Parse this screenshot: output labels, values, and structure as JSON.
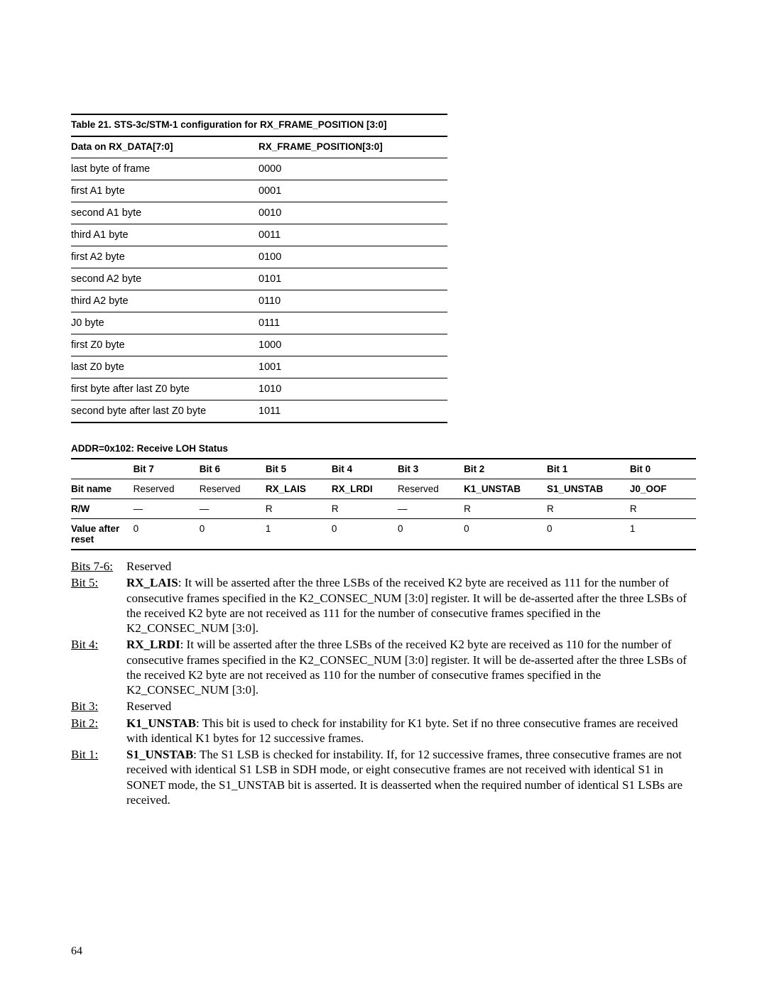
{
  "table21": {
    "caption": "Table 21. STS-3c/STM-1 configuration for RX_FRAME_POSITION [3:0]",
    "head_col1": "Data on RX_DATA[7:0]",
    "head_col2": "RX_FRAME_POSITION[3:0]",
    "rows": [
      {
        "c1": "last byte of frame",
        "c2": "0000"
      },
      {
        "c1": "first A1 byte",
        "c2": "0001"
      },
      {
        "c1": "second A1 byte",
        "c2": "0010"
      },
      {
        "c1": "third A1 byte",
        "c2": "0011"
      },
      {
        "c1": "first A2 byte",
        "c2": "0100"
      },
      {
        "c1": "second A2 byte",
        "c2": "0101"
      },
      {
        "c1": "third A2 byte",
        "c2": "0110"
      },
      {
        "c1": "J0 byte",
        "c2": "0111"
      },
      {
        "c1": "first Z0 byte",
        "c2": "1000"
      },
      {
        "c1": "last Z0 byte",
        "c2": "1001"
      },
      {
        "c1": "first byte after last Z0 byte",
        "c2": "1010"
      },
      {
        "c1": "second byte after last Z0 byte",
        "c2": "1011"
      }
    ]
  },
  "section_heading": "ADDR=0x102: Receive LOH Status",
  "reg": {
    "bit_headers": [
      "Bit 7",
      "Bit 6",
      "Bit 5",
      "Bit 4",
      "Bit 3",
      "Bit 2",
      "Bit 1",
      "Bit 0"
    ],
    "row_bitname_label": "Bit name",
    "row_rw_label": "R/W",
    "row_val_label": "Value after reset",
    "bitname": [
      "Reserved",
      "Reserved",
      "RX_LAIS",
      "RX_LRDI",
      "Reserved",
      "K1_UNSTAB",
      "S1_UNSTAB",
      "J0_OOF"
    ],
    "bitname_bold": [
      false,
      false,
      true,
      true,
      false,
      true,
      true,
      true
    ],
    "rw": [
      "—",
      "—",
      "R",
      "R",
      "—",
      "R",
      "R",
      "R"
    ],
    "val": [
      "0",
      "0",
      "1",
      "0",
      "0",
      "0",
      "0",
      "1"
    ]
  },
  "bits": {
    "b76_label": "Bits 7-6:",
    "b76_text": "Reserved",
    "b5_label": "Bit 5:",
    "b5_term": "RX_LAIS",
    "b5_text": ": It will be asserted after the three LSBs of the received K2 byte are received as 111 for the number of consecutive frames specified in the K2_CONSEC_NUM [3:0] register. It will be de-asserted after the three LSBs of the received K2 byte are not received as 111 for the number of consecutive frames specified in the K2_CONSEC_NUM [3:0].",
    "b4_label": "Bit 4:",
    "b4_term": "RX_LRDI",
    "b4_text": ": It will be asserted after the three LSBs of the received K2 byte are received as 110 for the number of consecutive frames specified in the K2_CONSEC_NUM [3:0] register. It will be de-asserted after the three LSBs of the received K2 byte are not received as 110 for the number of consecutive frames specified in the K2_CONSEC_NUM [3:0].",
    "b3_label": "Bit 3:",
    "b3_text": "Reserved",
    "b2_label": "Bit 2:",
    "b2_term": "K1_UNSTAB",
    "b2_text": ": This bit is used to check for instability for K1 byte. Set if no three consecutive frames are received with identical K1 bytes for 12 successive frames.",
    "b1_label": "Bit 1:",
    "b1_term": "S1_UNSTAB",
    "b1_text": ": The S1 LSB is checked for instability. If, for 12 successive frames, three consecutive frames are not received with identical S1 LSB in SDH mode, or eight consecutive frames are not received with identical S1 in SONET mode, the S1_UNSTAB bit is asserted. It is deasserted when the required number of identical S1 LSBs are received."
  },
  "page_number": "64"
}
